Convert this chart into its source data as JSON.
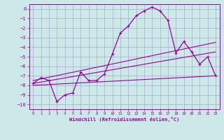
{
  "xlabel": "Windchill (Refroidissement éolien,°C)",
  "background_color": "#cce8e8",
  "grid_color": "#aaaacc",
  "line_color": "#990099",
  "xlim": [
    -0.5,
    23.5
  ],
  "ylim": [
    -10.5,
    0.5
  ],
  "yticks": [
    0,
    -1,
    -2,
    -3,
    -4,
    -5,
    -6,
    -7,
    -8,
    -9,
    -10
  ],
  "xticks": [
    0,
    1,
    2,
    3,
    4,
    5,
    6,
    7,
    8,
    9,
    10,
    11,
    12,
    13,
    14,
    15,
    16,
    17,
    18,
    19,
    20,
    21,
    22,
    23
  ],
  "curve1_x": [
    0,
    1,
    2,
    3,
    4,
    5,
    6,
    7,
    8,
    9,
    10,
    11,
    12,
    13,
    14,
    15,
    16,
    17,
    18,
    19,
    20,
    21,
    22,
    23
  ],
  "curve1_y": [
    -7.8,
    -7.2,
    -7.5,
    -9.7,
    -9.0,
    -8.8,
    -6.6,
    -7.5,
    -7.5,
    -6.8,
    -4.7,
    -2.5,
    -1.8,
    -0.7,
    -0.2,
    0.2,
    -0.2,
    -1.2,
    -4.6,
    -3.4,
    -4.5,
    -5.8,
    -5.0,
    -7.0
  ],
  "line2_x": [
    0,
    23
  ],
  "line2_y": [
    -7.5,
    -3.5
  ],
  "line3_x": [
    0,
    23
  ],
  "line3_y": [
    -7.8,
    -4.5
  ],
  "line4_x": [
    0,
    23
  ],
  "line4_y": [
    -8.0,
    -7.0
  ],
  "marker": "+"
}
